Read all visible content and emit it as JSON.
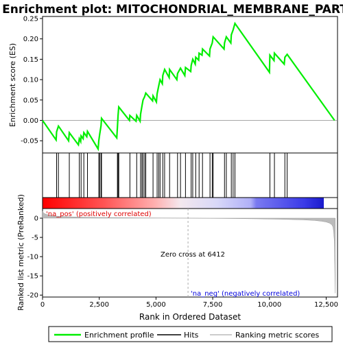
{
  "chart_data": {
    "type": "line",
    "title": "Enrichment plot: MITOCHONDRIAL_MEMBRANE_PART",
    "xlabel": "Rank in Ordered Dataset",
    "ylabel_top": "Enrichment score (ES)",
    "ylabel_bottom": "Ranked list metric (PreRanked)",
    "xlim": [
      0,
      13000
    ],
    "x_ticks": [
      0,
      2500,
      5000,
      7500,
      10000,
      12500
    ],
    "x_tick_labels": [
      "0",
      "2,500",
      "5,000",
      "7,500",
      "10,000",
      "12,500"
    ],
    "es_ylim": [
      -0.08,
      0.255
    ],
    "es_ticks": [
      -0.05,
      0.0,
      0.05,
      0.1,
      0.15,
      0.2,
      0.25
    ],
    "es_tick_labels": [
      "-0.05",
      "0.00",
      "0.05",
      "0.10",
      "0.15",
      "0.20",
      "0.25"
    ],
    "metric_ylim": [
      -20.5,
      2.5
    ],
    "metric_ticks": [
      0,
      -5,
      -10,
      -15,
      -20
    ],
    "metric_tick_labels": [
      "0",
      "-5",
      "-10",
      "-15",
      "-20"
    ],
    "n_genes": 12900,
    "zero_cross": 6412,
    "annotations": {
      "pos_label": "'na_pos' (positively correlated)",
      "neg_label": "'na_neg' (negatively correlated)",
      "zero_cross_label": "Zero cross at 6412"
    },
    "hits": [
      620,
      700,
      1180,
      1620,
      1700,
      1820,
      1980,
      2480,
      2520,
      2580,
      2600,
      3300,
      3330,
      3360,
      3850,
      4150,
      4320,
      4380,
      4430,
      4500,
      4550,
      4870,
      5050,
      5120,
      5180,
      5300,
      5380,
      5600,
      5950,
      6080,
      6300,
      6550,
      6620,
      6750,
      6900,
      7050,
      7380,
      7480,
      7520,
      8020,
      8100,
      8320,
      8400,
      8480,
      10020,
      10220,
      10680,
      10780
    ],
    "es_profile": {
      "x": [
        0,
        600,
        620,
        700,
        1150,
        1180,
        1580,
        1620,
        1680,
        1700,
        1790,
        1820,
        1950,
        1980,
        2450,
        2480,
        2520,
        2580,
        2600,
        3270,
        3300,
        3330,
        3360,
        3830,
        3850,
        4120,
        4150,
        4300,
        4320,
        4380,
        4430,
        4500,
        4550,
        4850,
        4870,
        5020,
        5050,
        5120,
        5180,
        5280,
        5300,
        5380,
        5580,
        5600,
        5920,
        5950,
        6080,
        6270,
        6300,
        6530,
        6550,
        6620,
        6730,
        6750,
        6880,
        6900,
        7030,
        7050,
        7360,
        7380,
        7480,
        7520,
        8000,
        8020,
        8100,
        8300,
        8320,
        8400,
        8480,
        10000,
        10020,
        10200,
        10220,
        10650,
        10680,
        10780,
        12870
      ],
      "y": [
        0.0,
        -0.048,
        -0.028,
        -0.014,
        -0.05,
        -0.03,
        -0.06,
        -0.045,
        -0.052,
        -0.038,
        -0.045,
        -0.03,
        -0.04,
        -0.027,
        -0.07,
        -0.05,
        -0.033,
        -0.013,
        0.005,
        -0.043,
        -0.016,
        0.012,
        0.033,
        -0.0,
        0.012,
        -0.002,
        0.012,
        -0.002,
        0.015,
        0.035,
        0.05,
        0.058,
        0.067,
        0.048,
        0.06,
        0.045,
        0.065,
        0.085,
        0.1,
        0.09,
        0.11,
        0.125,
        0.105,
        0.125,
        0.1,
        0.115,
        0.128,
        0.11,
        0.13,
        0.12,
        0.135,
        0.15,
        0.138,
        0.155,
        0.148,
        0.165,
        0.16,
        0.175,
        0.158,
        0.175,
        0.19,
        0.205,
        0.175,
        0.19,
        0.205,
        0.19,
        0.21,
        0.222,
        0.238,
        0.118,
        0.16,
        0.147,
        0.165,
        0.138,
        0.155,
        0.162,
        0.0
      ]
    },
    "metric_profile": {
      "x": [
        0,
        50,
        150,
        300,
        500,
        800,
        1200,
        1800,
        2500,
        3500,
        4500,
        5500,
        6412,
        7500,
        8500,
        9500,
        10500,
        11500,
        12000,
        12300,
        12500,
        12650,
        12750,
        12800,
        12830,
        12860,
        12880,
        12900
      ],
      "y": [
        1.8,
        1.3,
        1.0,
        0.8,
        0.6,
        0.45,
        0.35,
        0.25,
        0.18,
        0.12,
        0.08,
        0.04,
        0.0,
        -0.05,
        -0.1,
        -0.18,
        -0.28,
        -0.45,
        -0.6,
        -0.8,
        -1.0,
        -1.3,
        -1.7,
        -2.3,
        -3.5,
        -6.0,
        -12.0,
        -19.5
      ]
    },
    "legend": [
      "Enrichment profile",
      "Hits",
      "Ranking metric scores"
    ],
    "colors": {
      "profile": "#00ee00",
      "hits": "#000000",
      "metric": "#bbbbbb",
      "zero_line": "#aaaaaa",
      "pos_label": "#dd0000",
      "neg_label": "#0000dd",
      "bar_pos": "#ff0000",
      "bar_neg": "#0000ff"
    }
  }
}
